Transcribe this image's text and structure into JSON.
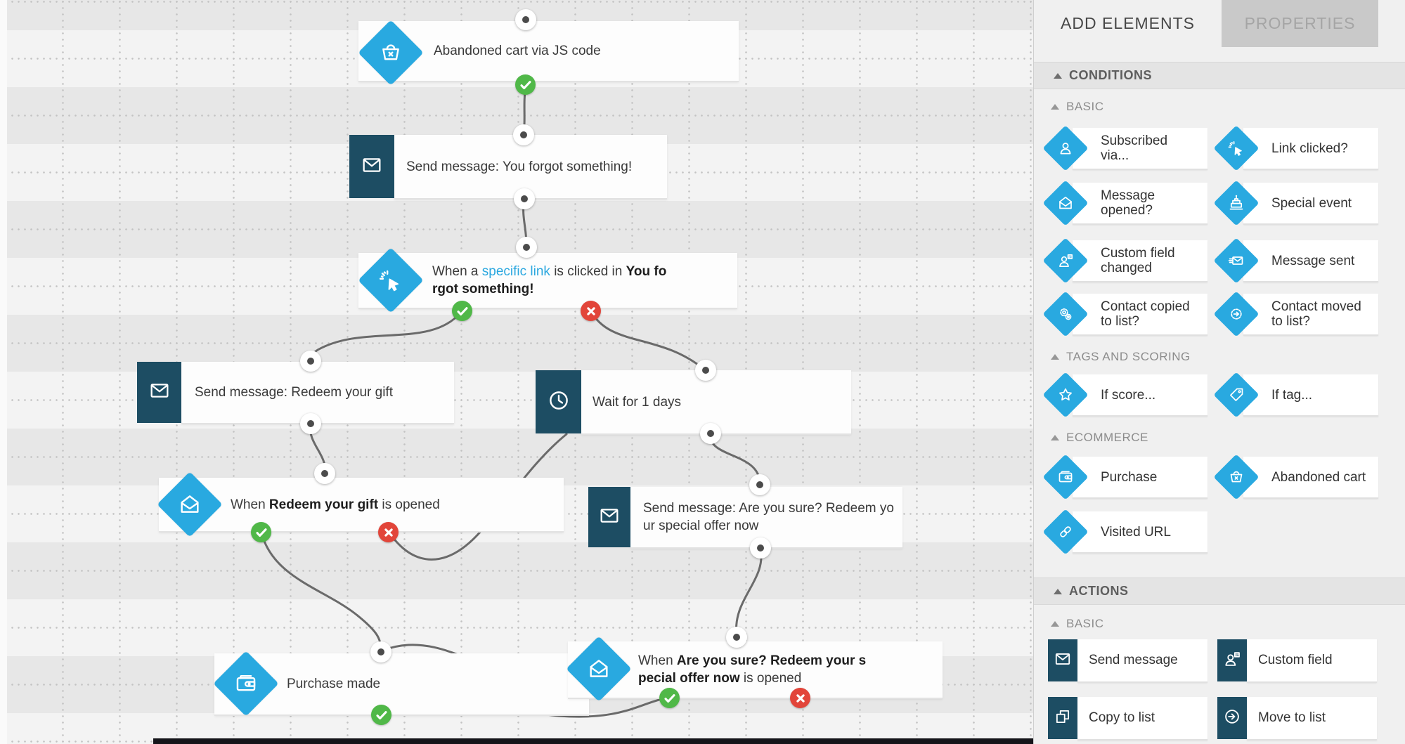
{
  "colors": {
    "accent_blue": "#29a9e0",
    "action_teal": "#1d4d63",
    "success_green": "#50b848",
    "error_red": "#e2453a",
    "canvas_bg": "#ececec",
    "sidebar_bg": "#f0f0f0"
  },
  "canvas": {
    "nodes": [
      {
        "id": "abandoned-cart-trigger",
        "icon": "basket-x",
        "segments": [
          {
            "t": "Abandoned cart via JS code"
          }
        ]
      },
      {
        "id": "send-message-you-forgot",
        "icon": "mail",
        "segments": [
          {
            "t": "Send message: You forgot something!"
          }
        ]
      },
      {
        "id": "when-specific-link-clicked",
        "icon": "click",
        "segments": [
          {
            "t": "When a "
          },
          {
            "t": "specific link",
            "c": "link"
          },
          {
            "t": " is clicked in "
          },
          {
            "t": "You fo",
            "c": "b"
          },
          {
            "br": true
          },
          {
            "t": "rgot something!",
            "c": "b"
          }
        ]
      },
      {
        "id": "send-message-redeem-gift",
        "icon": "mail",
        "segments": [
          {
            "t": "Send message: Redeem your gift"
          }
        ]
      },
      {
        "id": "wait-1-days",
        "icon": "clock",
        "segments": [
          {
            "t": "Wait for 1 days"
          }
        ]
      },
      {
        "id": "when-redeem-gift-opened",
        "icon": "mail-open",
        "segments": [
          {
            "t": "When "
          },
          {
            "t": "Redeem your gift",
            "c": "b"
          },
          {
            "t": " is opened"
          }
        ]
      },
      {
        "id": "send-message-are-you-sure",
        "icon": "mail",
        "segments": [
          {
            "t": "Send message: Are you sure? Redeem yo"
          },
          {
            "br": true
          },
          {
            "t": "ur special offer now"
          }
        ]
      },
      {
        "id": "purchase-made",
        "icon": "wallet",
        "segments": [
          {
            "t": "Purchase made"
          }
        ]
      },
      {
        "id": "when-are-you-sure-opened",
        "icon": "mail-open",
        "segments": [
          {
            "t": "When "
          },
          {
            "t": "Are you sure? Redeem your s",
            "c": "b"
          },
          {
            "br": true
          },
          {
            "t": "pecial offer now",
            "c": "b"
          },
          {
            "t": " is opened"
          }
        ]
      }
    ]
  },
  "sidebar": {
    "tab_add": "ADD ELEMENTS",
    "tab_properties": "PROPERTIES",
    "conditions": {
      "header": "CONDITIONS",
      "basic_label": "BASIC",
      "basic_items": [
        {
          "icon": "person",
          "segments": [
            {
              "t": "Subscribed"
            },
            {
              "br": true
            },
            {
              "t": "via..."
            }
          ]
        },
        {
          "icon": "click",
          "segments": [
            {
              "t": "Link clicked?"
            }
          ]
        },
        {
          "icon": "mail-open",
          "segments": [
            {
              "t": "Message"
            },
            {
              "br": true
            },
            {
              "t": "opened?"
            }
          ]
        },
        {
          "icon": "cake",
          "segments": [
            {
              "t": "Special event"
            }
          ]
        },
        {
          "icon": "person-field",
          "segments": [
            {
              "t": "Custom field"
            },
            {
              "br": true
            },
            {
              "t": "changed"
            }
          ]
        },
        {
          "icon": "mail-sent",
          "segments": [
            {
              "t": "Message sent"
            }
          ]
        },
        {
          "icon": "gears",
          "segments": [
            {
              "t": "Contact copied"
            },
            {
              "br": true
            },
            {
              "t": "to list?"
            }
          ]
        },
        {
          "icon": "gear-arrow",
          "segments": [
            {
              "t": "Contact moved"
            },
            {
              "br": true
            },
            {
              "t": "to list?"
            }
          ]
        }
      ],
      "tags_label": "TAGS AND SCORING",
      "tags_items": [
        {
          "icon": "star",
          "segments": [
            {
              "t": "If score..."
            }
          ]
        },
        {
          "icon": "tag",
          "segments": [
            {
              "t": "If tag..."
            }
          ]
        }
      ],
      "ecommerce_label": "ECOMMERCE",
      "ecommerce_items": [
        {
          "icon": "wallet",
          "segments": [
            {
              "t": "Purchase"
            }
          ]
        },
        {
          "icon": "basket-x",
          "segments": [
            {
              "t": "Abandoned cart"
            }
          ]
        },
        {
          "icon": "link",
          "segments": [
            {
              "t": "Visited URL"
            }
          ]
        }
      ]
    },
    "actions": {
      "header": "ACTIONS",
      "basic_label": "BASIC",
      "items": [
        {
          "icon": "mail",
          "segments": [
            {
              "t": "Send message"
            }
          ]
        },
        {
          "icon": "person-field",
          "segments": [
            {
              "t": "Custom field"
            }
          ]
        },
        {
          "icon": "copy",
          "segments": [
            {
              "t": "Copy to list"
            }
          ]
        },
        {
          "icon": "move",
          "segments": [
            {
              "t": "Move to list"
            }
          ]
        }
      ]
    }
  }
}
